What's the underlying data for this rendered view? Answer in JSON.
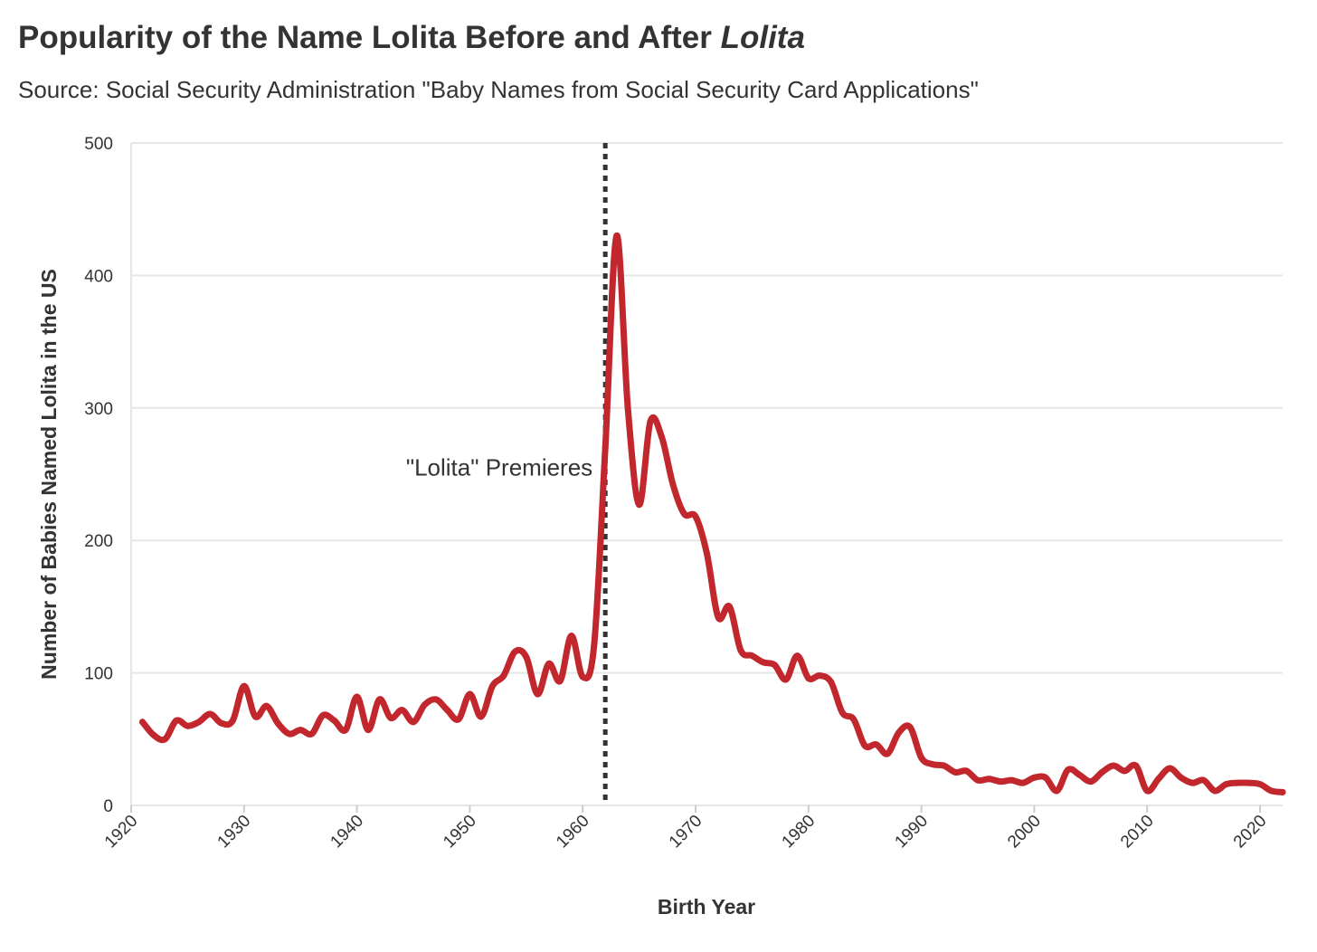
{
  "chart_data": {
    "type": "line",
    "title_main": "Popularity of the Name Lolita Before and After",
    "title_italic": "Lolita",
    "subtitle": "Source: Social Security Administration \"Baby Names from Social Security Card Applications\"",
    "xlabel": "Birth Year",
    "ylabel": "Number of Babies Named Lolita in the US",
    "xlim": [
      1920,
      2022
    ],
    "ylim": [
      0,
      500
    ],
    "y_ticks": [
      0,
      100,
      200,
      300,
      400,
      500
    ],
    "x_ticks": [
      1920,
      1930,
      1940,
      1950,
      1960,
      1970,
      1980,
      1990,
      2000,
      2010,
      2020
    ],
    "grid": true,
    "line_color": "#c1272d",
    "series": [
      {
        "x": [
          1921,
          1922,
          1923,
          1924,
          1925,
          1926,
          1927,
          1928,
          1929,
          1930,
          1931,
          1932,
          1933,
          1934,
          1935,
          1936,
          1937,
          1938,
          1939,
          1940,
          1941,
          1942,
          1943,
          1944,
          1945,
          1946,
          1947,
          1948,
          1949,
          1950,
          1951,
          1952,
          1953,
          1954,
          1955,
          1956,
          1957,
          1958,
          1959,
          1960,
          1961,
          1962,
          1963,
          1964,
          1965,
          1966,
          1967,
          1968,
          1969,
          1970,
          1971,
          1972,
          1973,
          1974,
          1975,
          1976,
          1977,
          1978,
          1979,
          1980,
          1981,
          1982,
          1983,
          1984,
          1985,
          1986,
          1987,
          1988,
          1989,
          1990,
          1991,
          1992,
          1993,
          1994,
          1995,
          1996,
          1997,
          1998,
          1999,
          2000,
          2001,
          2002,
          2003,
          2004,
          2005,
          2006,
          2007,
          2008,
          2009,
          2010,
          2011,
          2012,
          2013,
          2014,
          2015,
          2016,
          2017,
          2018,
          2019,
          2020,
          2021,
          2022
        ],
        "values": [
          63,
          53,
          50,
          64,
          60,
          63,
          69,
          62,
          64,
          90,
          67,
          75,
          62,
          54,
          57,
          54,
          68,
          64,
          57,
          82,
          57,
          80,
          66,
          72,
          63,
          76,
          80,
          72,
          65,
          84,
          67,
          90,
          98,
          116,
          112,
          84,
          107,
          94,
          128,
          97,
          120,
          270,
          430,
          300,
          227,
          290,
          278,
          242,
          220,
          218,
          190,
          142,
          150,
          117,
          113,
          108,
          106,
          95,
          113,
          96,
          98,
          93,
          70,
          65,
          45,
          46,
          39,
          55,
          59,
          36,
          31,
          30,
          25,
          26,
          19,
          20,
          18,
          19,
          17,
          21,
          21,
          11,
          27,
          23,
          18,
          25,
          30,
          26,
          30,
          11,
          20,
          28,
          21,
          17,
          19,
          11,
          16,
          17,
          17,
          16,
          11,
          10
        ]
      }
    ],
    "annotation": {
      "x": 1962,
      "label": "\"Lolita\" Premieres"
    }
  }
}
